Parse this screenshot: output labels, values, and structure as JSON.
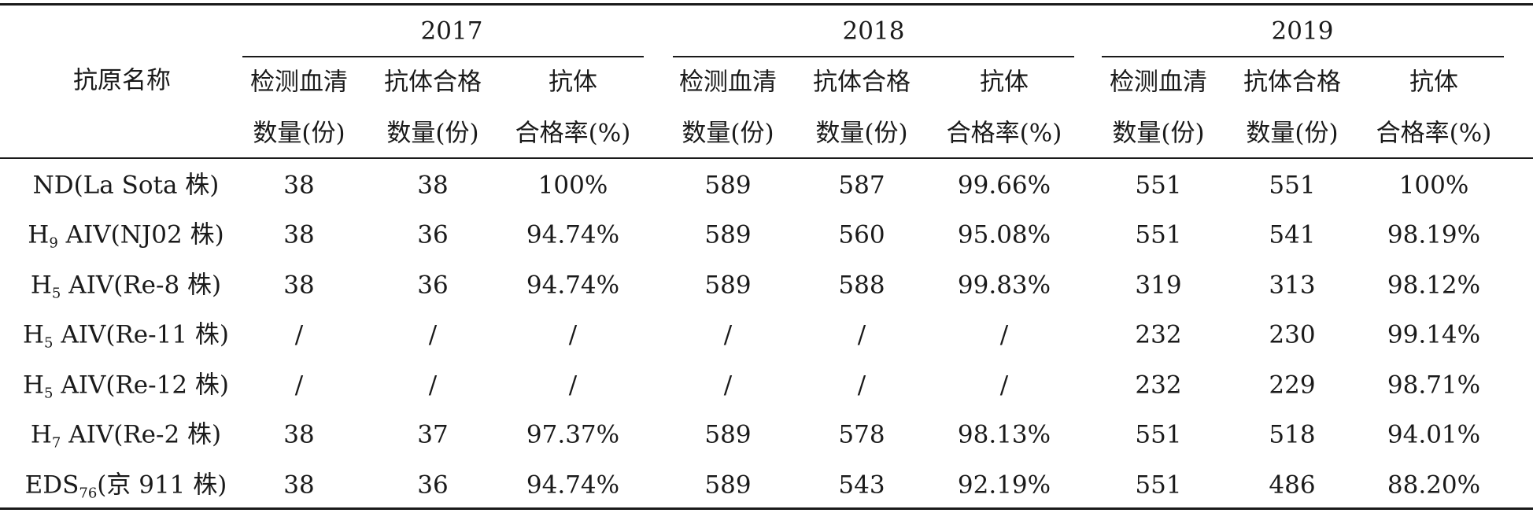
{
  "header": {
    "antigen_label": "抗原名称",
    "years": [
      "2017",
      "2018",
      "2019"
    ],
    "sub_columns": [
      {
        "line1": "检测血清",
        "line2": "数量(份)"
      },
      {
        "line1": "抗体合格",
        "line2": "数量(份)"
      },
      {
        "line1": "抗体",
        "line2": "合格率(%)"
      }
    ]
  },
  "rows": [
    {
      "antigen": {
        "pre": "ND(La Sota 株)",
        "sub": "",
        "post": ""
      },
      "values": [
        "38",
        "38",
        "100%",
        "589",
        "587",
        "99.66%",
        "551",
        "551",
        "100%"
      ]
    },
    {
      "antigen": {
        "pre": "H",
        "sub": "9",
        "post": " AIV(NJ02 株)"
      },
      "values": [
        "38",
        "36",
        "94.74%",
        "589",
        "560",
        "95.08%",
        "551",
        "541",
        "98.19%"
      ]
    },
    {
      "antigen": {
        "pre": "H",
        "sub": "5",
        "post": " AIV(Re-8 株)"
      },
      "values": [
        "38",
        "36",
        "94.74%",
        "589",
        "588",
        "99.83%",
        "319",
        "313",
        "98.12%"
      ]
    },
    {
      "antigen": {
        "pre": "H",
        "sub": "5",
        "post": " AIV(Re-11 株)"
      },
      "values": [
        "/",
        "/",
        "/",
        "/",
        "/",
        "/",
        "232",
        "230",
        "99.14%"
      ]
    },
    {
      "antigen": {
        "pre": "H",
        "sub": "5",
        "post": " AIV(Re-12 株)"
      },
      "values": [
        "/",
        "/",
        "/",
        "/",
        "/",
        "/",
        "232",
        "229",
        "98.71%"
      ]
    },
    {
      "antigen": {
        "pre": "H",
        "sub": "7",
        "post": " AIV(Re-2 株)"
      },
      "values": [
        "38",
        "37",
        "97.37%",
        "589",
        "578",
        "98.13%",
        "551",
        "518",
        "94.01%"
      ]
    },
    {
      "antigen": {
        "pre": "EDS",
        "sub": "76",
        "post": "(京 911 株)"
      },
      "values": [
        "38",
        "36",
        "94.74%",
        "589",
        "543",
        "92.19%",
        "551",
        "486",
        "88.20%"
      ]
    }
  ]
}
